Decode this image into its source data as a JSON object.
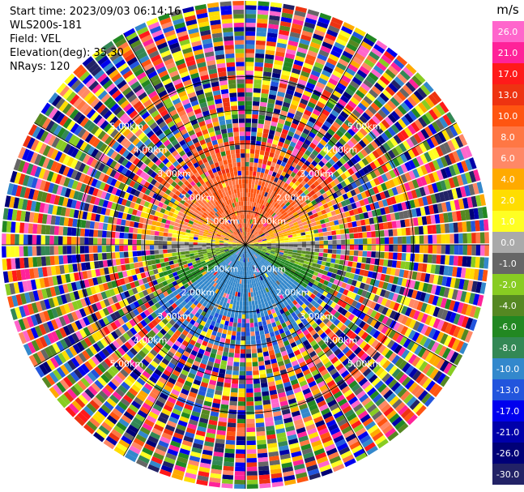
{
  "header": {
    "start_time": "Start time: 2023/09/03 06:14:16",
    "instrument": "WLS200s-181",
    "field": "Field: VEL",
    "elevation": "Elevation(deg): 35.30",
    "nrays": "NRays: 120"
  },
  "ppi": {
    "field": "VEL",
    "rays": 120,
    "range_rings": [
      {
        "range_km": 1.0,
        "label": "1.00km"
      },
      {
        "range_km": 2.0,
        "label": "2.00km"
      },
      {
        "range_km": 3.0,
        "label": "3.00km"
      },
      {
        "range_km": 4.0,
        "label": "4.00km"
      },
      {
        "range_km": 5.0,
        "label": "5.00km"
      }
    ]
  },
  "colorbar": {
    "unit": "m/s",
    "ticks": [
      "26.0",
      "21.0",
      "17.0",
      "13.0",
      "10.0",
      "8.0",
      "6.0",
      "4.0",
      "2.0",
      "1.0",
      "0.0",
      "-1.0",
      "-2.0",
      "-4.0",
      "-6.0",
      "-8.0",
      "-10.0",
      "-13.0",
      "-17.0",
      "-21.0",
      "-26.0",
      "-30.0"
    ],
    "colors": [
      "#ff66cc",
      "#ff2299",
      "#ff1a1a",
      "#ee3311",
      "#ff5511",
      "#ff7744",
      "#ff8866",
      "#ffaa00",
      "#ffdd00",
      "#ffff22",
      "#aaaaaa",
      "#666666",
      "#88cc22",
      "#558822",
      "#228822",
      "#338855",
      "#3388cc",
      "#2255dd",
      "#0000ee",
      "#0000aa",
      "#000077",
      "#222266"
    ]
  }
}
